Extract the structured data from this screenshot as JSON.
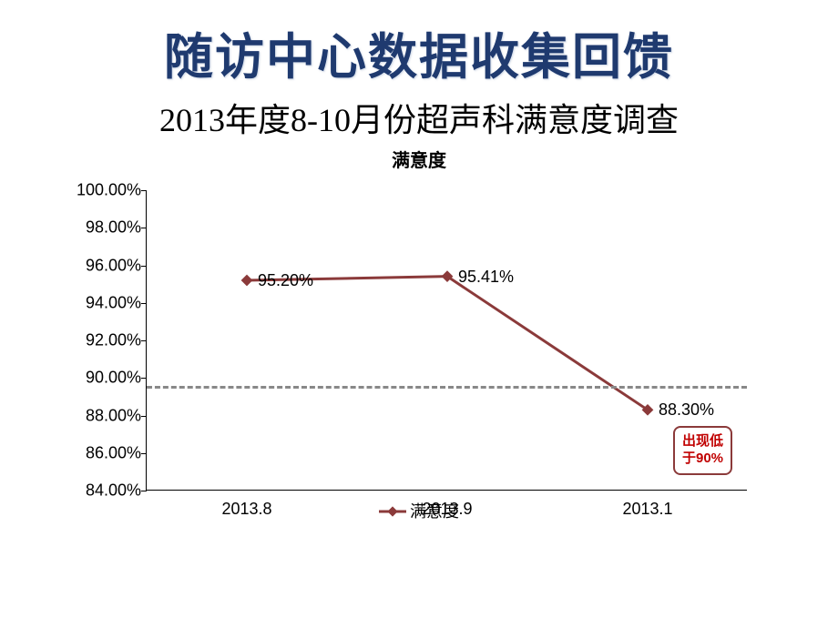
{
  "title": "随访中心数据收集回馈",
  "subtitle": "2013年度8-10月份超声科满意度调查",
  "chart": {
    "type": "line",
    "title": "满意度",
    "x_labels": [
      "2013.8",
      "2013.9",
      "2013.1"
    ],
    "series_name": "满意度",
    "values": [
      95.2,
      95.41,
      88.3
    ],
    "value_labels": [
      "95.20%",
      "95.41%",
      "88.30%"
    ],
    "ylim": [
      84.0,
      100.0
    ],
    "ytick_step": 2.0,
    "yticks": [
      "84.00%",
      "86.00%",
      "88.00%",
      "90.00%",
      "92.00%",
      "94.00%",
      "96.00%",
      "98.00%",
      "100.00%"
    ],
    "reference_line": 89.6,
    "reference_color": "#888888",
    "line_color": "#8b3a3a",
    "marker_color": "#8b3a3a",
    "marker_shape": "diamond",
    "marker_size": 9,
    "line_width": 3,
    "background_color": "#ffffff",
    "axis_color": "#000000",
    "tick_fontsize": 18,
    "title_fontsize": 20,
    "callout": {
      "text_line1": "出现低",
      "text_line2": "于90%",
      "border_color": "#8b3a3a",
      "text_color": "#c00000"
    },
    "legend_label": "满意度"
  }
}
